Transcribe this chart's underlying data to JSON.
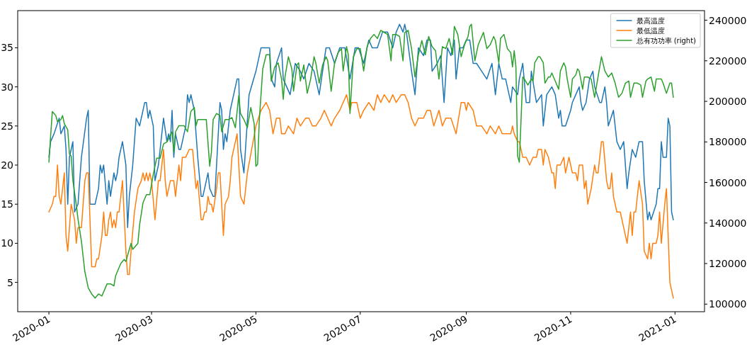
{
  "chart_data": {
    "type": "line",
    "xlim": [
      "2019-12-13T18:00",
      "2021-01-18T06:00"
    ],
    "xticks": [
      "2020-01",
      "2020-03",
      "2020-05",
      "2020-07",
      "2020-09",
      "2020-11",
      "2021-01"
    ],
    "ylim": [
      1.25,
      39.75
    ],
    "yticks": [
      5,
      10,
      15,
      20,
      25,
      30,
      35
    ],
    "y2lim": [
      96250,
      244750
    ],
    "y2ticks": [
      100000,
      120000,
      140000,
      160000,
      180000,
      200000,
      220000,
      240000
    ],
    "legend": "top right",
    "series": [
      {
        "name": "最高温度",
        "color": "#1f77b4",
        "x": [
          "2020-01-01",
          "2020-01-02",
          "2020-01-04",
          "2020-01-07",
          "2020-01-08",
          "2020-01-10",
          "2020-01-11",
          "2020-01-12",
          "2020-01-13",
          "2020-01-15",
          "2020-01-16",
          "2020-01-18",
          "2020-01-20",
          "2020-01-23",
          "2020-01-24",
          "2020-01-25",
          "2020-01-28",
          "2020-01-30",
          "2020-01-31",
          "2020-02-01",
          "2020-02-02",
          "2020-02-04",
          "2020-02-05",
          "2020-02-06",
          "2020-02-08",
          "2020-02-09",
          "2020-02-10",
          "2020-02-11",
          "2020-02-13",
          "2020-02-15",
          "2020-02-16",
          "2020-02-17",
          "2020-02-19",
          "2020-02-21",
          "2020-02-23",
          "2020-02-26",
          "2020-02-27",
          "2020-02-28",
          "2020-02-29",
          "2020-03-02",
          "2020-03-03",
          "2020-03-05",
          "2020-03-08",
          "2020-03-10",
          "2020-03-11",
          "2020-03-12",
          "2020-03-13",
          "2020-03-14",
          "2020-03-15",
          "2020-03-17",
          "2020-03-18",
          "2020-03-21",
          "2020-03-22",
          "2020-03-23",
          "2020-03-24",
          "2020-03-26",
          "2020-03-28",
          "2020-03-30",
          "2020-03-31",
          "2020-04-02",
          "2020-04-03",
          "2020-04-04",
          "2020-04-06",
          "2020-04-07",
          "2020-04-10",
          "2020-04-11",
          "2020-04-12",
          "2020-04-13",
          "2020-04-14",
          "2020-04-16",
          "2020-04-17",
          "2020-04-18",
          "2020-04-20",
          "2020-04-21",
          "2020-04-22",
          "2020-04-24",
          "2020-04-27",
          "2020-05-01",
          "2020-05-04",
          "2020-05-07",
          "2020-05-09",
          "2020-05-10",
          "2020-05-12",
          "2020-05-13",
          "2020-05-16",
          "2020-05-17",
          "2020-05-21",
          "2020-05-24",
          "2020-05-27",
          "2020-05-29",
          "2020-06-01",
          "2020-06-04",
          "2020-06-07",
          "2020-06-11",
          "2020-06-13",
          "2020-06-16",
          "2020-06-19",
          "2020-06-22",
          "2020-06-25",
          "2020-06-28",
          "2020-06-30",
          "2020-07-03",
          "2020-07-06",
          "2020-07-08",
          "2020-07-11",
          "2020-07-14",
          "2020-07-17",
          "2020-07-20",
          "2020-07-22",
          "2020-07-24",
          "2020-07-26",
          "2020-07-27",
          "2020-07-28",
          "2020-07-31",
          "2020-08-02",
          "2020-08-04",
          "2020-08-07",
          "2020-08-09",
          "2020-08-11",
          "2020-08-12",
          "2020-08-15",
          "2020-08-17",
          "2020-08-19",
          "2020-08-21",
          "2020-08-23",
          "2020-08-25",
          "2020-08-26",
          "2020-08-28",
          "2020-08-30",
          "2020-09-01",
          "2020-09-03",
          "2020-09-05",
          "2020-09-07",
          "2020-09-10",
          "2020-09-13",
          "2020-09-16",
          "2020-09-18",
          "2020-09-20",
          "2020-09-22",
          "2020-09-24",
          "2020-09-27",
          "2020-09-28",
          "2020-10-01",
          "2020-10-02",
          "2020-10-04",
          "2020-10-06",
          "2020-10-08",
          "2020-10-09",
          "2020-10-12",
          "2020-10-15",
          "2020-10-16",
          "2020-10-18",
          "2020-10-21",
          "2020-10-23",
          "2020-10-25",
          "2020-10-26",
          "2020-10-27",
          "2020-10-29",
          "2020-11-01",
          "2020-11-02",
          "2020-11-04",
          "2020-11-06",
          "2020-11-07",
          "2020-11-08",
          "2020-11-10",
          "2020-11-12",
          "2020-11-14",
          "2020-11-15",
          "2020-11-18",
          "2020-11-19",
          "2020-11-21",
          "2020-11-22",
          "2020-11-23",
          "2020-11-26",
          "2020-11-28",
          "2020-11-30",
          "2020-12-02",
          "2020-12-04",
          "2020-12-05",
          "2020-12-07",
          "2020-12-09",
          "2020-12-11",
          "2020-12-13",
          "2020-12-14",
          "2020-12-16",
          "2020-12-17",
          "2020-12-18",
          "2020-12-21",
          "2020-12-22",
          "2020-12-23",
          "2020-12-24",
          "2020-12-25",
          "2020-12-27",
          "2020-12-28",
          "2020-12-29",
          "2020-12-30",
          "2020-12-31"
        ],
        "values": [
          21,
          23,
          24,
          26,
          24,
          25,
          22,
          15,
          21,
          23,
          14,
          15,
          21,
          26,
          27,
          15,
          15,
          17,
          20,
          19,
          20,
          15,
          18,
          16,
          19,
          18,
          19,
          21,
          23,
          20,
          12,
          16,
          20,
          26,
          25,
          28,
          28,
          26,
          27,
          25,
          18,
          20,
          26,
          23,
          24,
          23,
          27,
          21,
          24,
          22,
          22,
          25,
          29,
          28,
          29,
          27,
          21,
          16,
          16,
          18,
          19,
          17,
          16,
          16,
          28,
          27,
          22,
          24,
          23,
          27,
          28,
          29,
          31,
          31,
          22,
          19,
          29,
          32,
          35,
          35,
          35,
          31,
          30,
          33,
          35,
          31,
          29,
          33,
          32,
          31,
          33,
          32,
          29,
          35,
          35,
          33,
          35,
          35,
          31,
          35,
          35,
          33,
          36,
          35,
          35,
          37,
          37,
          35,
          37,
          38,
          37,
          38,
          37,
          32,
          29,
          35,
          34,
          36,
          36,
          32,
          33,
          34,
          28,
          35,
          34,
          36,
          31,
          35,
          35,
          36,
          36,
          33,
          33,
          32,
          31,
          33,
          29,
          33,
          31,
          31,
          28,
          30,
          29,
          31,
          33,
          28,
          28,
          32,
          28,
          29,
          25,
          29,
          30,
          29,
          26,
          27,
          25,
          25,
          27,
          28,
          29,
          30,
          28,
          27,
          28,
          31,
          32,
          30,
          28,
          28,
          30,
          28,
          25,
          27,
          23,
          22,
          23,
          17,
          19,
          22,
          21,
          23,
          23,
          18,
          13,
          14,
          13,
          15,
          17,
          17,
          23,
          21,
          21,
          26,
          25,
          14,
          13
        ]
      },
      {
        "name": "最低温度",
        "color": "#ff7f0e",
        "x": [
          "2020-01-01",
          "2020-01-03",
          "2020-01-04",
          "2020-01-05",
          "2020-01-06",
          "2020-01-07",
          "2020-01-08",
          "2020-01-10",
          "2020-01-11",
          "2020-01-12",
          "2020-01-14",
          "2020-01-16",
          "2020-01-17",
          "2020-01-18",
          "2020-01-20",
          "2020-01-22",
          "2020-01-23",
          "2020-01-24",
          "2020-01-26",
          "2020-01-28",
          "2020-01-29",
          "2020-01-30",
          "2020-02-01",
          "2020-02-02",
          "2020-02-03",
          "2020-02-04",
          "2020-02-05",
          "2020-02-06",
          "2020-02-07",
          "2020-02-08",
          "2020-02-09",
          "2020-02-10",
          "2020-02-11",
          "2020-02-13",
          "2020-02-15",
          "2020-02-16",
          "2020-02-17",
          "2020-02-18",
          "2020-02-20",
          "2020-02-22",
          "2020-02-24",
          "2020-02-25",
          "2020-02-26",
          "2020-02-27",
          "2020-02-28",
          "2020-02-29",
          "2020-03-01",
          "2020-03-03",
          "2020-03-05",
          "2020-03-06",
          "2020-03-08",
          "2020-03-09",
          "2020-03-10",
          "2020-03-12",
          "2020-03-14",
          "2020-03-15",
          "2020-03-17",
          "2020-03-18",
          "2020-03-19",
          "2020-03-21",
          "2020-03-23",
          "2020-03-25",
          "2020-03-27",
          "2020-03-28",
          "2020-03-30",
          "2020-03-31",
          "2020-04-01",
          "2020-04-02",
          "2020-04-03",
          "2020-04-04",
          "2020-04-05",
          "2020-04-06",
          "2020-04-08",
          "2020-04-09",
          "2020-04-10",
          "2020-04-12",
          "2020-04-13",
          "2020-04-15",
          "2020-04-16",
          "2020-04-17",
          "2020-04-20",
          "2020-04-21",
          "2020-04-22",
          "2020-04-24",
          "2020-04-26",
          "2020-05-01",
          "2020-05-04",
          "2020-05-07",
          "2020-05-09",
          "2020-05-11",
          "2020-05-13",
          "2020-05-15",
          "2020-05-16",
          "2020-05-18",
          "2020-05-20",
          "2020-05-23",
          "2020-05-25",
          "2020-05-27",
          "2020-05-30",
          "2020-06-01",
          "2020-06-03",
          "2020-06-05",
          "2020-06-08",
          "2020-06-10",
          "2020-06-12",
          "2020-06-14",
          "2020-06-16",
          "2020-06-19",
          "2020-06-21",
          "2020-06-23",
          "2020-06-25",
          "2020-06-26",
          "2020-06-29",
          "2020-07-01",
          "2020-07-03",
          "2020-07-06",
          "2020-07-09",
          "2020-07-11",
          "2020-07-13",
          "2020-07-15",
          "2020-07-18",
          "2020-07-20",
          "2020-07-22",
          "2020-07-25",
          "2020-07-27",
          "2020-07-29",
          "2020-07-31",
          "2020-08-02",
          "2020-08-04",
          "2020-08-07",
          "2020-08-09",
          "2020-08-11",
          "2020-08-13",
          "2020-08-16",
          "2020-08-18",
          "2020-08-20",
          "2020-08-23",
          "2020-08-26",
          "2020-08-29",
          "2020-08-31",
          "2020-09-01",
          "2020-09-02",
          "2020-09-05",
          "2020-09-07",
          "2020-09-10",
          "2020-09-13",
          "2020-09-15",
          "2020-09-18",
          "2020-09-20",
          "2020-09-22",
          "2020-09-27",
          "2020-09-28",
          "2020-09-29",
          "2020-10-01",
          "2020-10-02",
          "2020-10-04",
          "2020-10-06",
          "2020-10-08",
          "2020-10-10",
          "2020-10-12",
          "2020-10-13",
          "2020-10-15",
          "2020-10-16",
          "2020-10-17",
          "2020-10-19",
          "2020-10-21",
          "2020-10-22",
          "2020-10-23",
          "2020-10-24",
          "2020-10-26",
          "2020-10-28",
          "2020-10-29",
          "2020-10-31",
          "2020-11-02",
          "2020-11-04",
          "2020-11-05",
          "2020-11-06",
          "2020-11-08",
          "2020-11-09",
          "2020-11-10",
          "2020-11-11",
          "2020-11-13",
          "2020-11-15",
          "2020-11-16",
          "2020-11-17",
          "2020-11-19",
          "2020-11-20",
          "2020-11-22",
          "2020-11-23",
          "2020-11-24",
          "2020-11-25",
          "2020-11-26",
          "2020-11-28",
          "2020-11-30",
          "2020-12-02",
          "2020-12-04",
          "2020-12-06",
          "2020-12-07",
          "2020-12-08",
          "2020-12-09",
          "2020-12-11",
          "2020-12-13",
          "2020-12-14",
          "2020-12-16",
          "2020-12-17",
          "2020-12-18",
          "2020-12-19",
          "2020-12-21",
          "2020-12-22",
          "2020-12-23",
          "2020-12-24",
          "2020-12-26",
          "2020-12-27",
          "2020-12-29",
          "2020-12-31"
        ],
        "values": [
          14,
          15,
          16,
          16,
          20,
          16,
          15,
          19,
          11,
          9,
          15,
          13,
          10,
          12,
          12,
          18,
          19,
          19,
          7,
          7,
          8,
          8,
          11,
          14,
          11,
          11,
          13,
          14,
          12,
          13,
          12,
          14,
          14,
          18,
          9,
          6,
          6,
          9,
          14,
          17,
          18,
          19,
          18,
          19,
          18,
          19,
          18,
          13,
          18,
          18,
          22,
          18,
          16,
          18,
          18,
          16,
          20,
          18,
          21,
          21,
          22,
          22,
          17,
          18,
          13,
          13,
          14,
          14,
          16,
          15,
          15,
          14,
          17,
          19,
          19,
          11,
          15,
          16,
          18,
          21,
          24,
          20,
          16,
          15,
          19,
          25,
          27,
          28,
          27,
          24,
          26,
          26,
          24,
          24,
          25,
          24,
          26,
          25,
          26,
          26,
          25,
          25,
          26,
          27,
          26,
          25,
          26,
          27,
          28,
          29,
          27,
          28,
          28,
          26,
          27,
          28,
          27,
          29,
          28,
          29,
          28,
          29,
          28,
          29,
          29,
          28,
          26,
          25,
          26,
          26,
          27,
          27,
          25,
          27,
          25,
          26,
          26,
          24,
          28,
          28,
          27,
          28,
          27,
          25,
          25,
          24,
          25,
          24,
          25,
          24,
          24,
          25,
          24,
          23,
          23,
          21,
          21,
          20,
          21,
          21,
          22,
          22,
          20,
          22,
          21,
          19,
          19,
          17,
          20,
          20,
          21,
          19,
          21,
          19,
          19,
          18,
          20,
          20,
          17,
          18,
          15,
          17,
          20,
          19,
          19,
          23,
          23,
          18,
          17,
          17,
          19,
          16,
          14,
          14,
          12,
          10,
          14,
          11,
          14,
          14,
          18,
          15,
          9,
          8,
          10,
          8,
          10,
          10,
          11,
          14,
          10,
          15,
          17,
          5,
          3
        ]
      },
      {
        "name": "总有功功率 (right)",
        "color": "#2ca02c",
        "axis": "y2",
        "x": [
          "2020-01-01",
          "2020-01-02",
          "2020-01-03",
          "2020-01-04",
          "2020-01-05",
          "2020-01-06",
          "2020-01-08",
          "2020-01-09",
          "2020-01-10",
          "2020-01-12",
          "2020-01-13",
          "2020-01-14",
          "2020-01-15",
          "2020-01-17",
          "2020-01-18",
          "2020-01-20",
          "2020-01-22",
          "2020-01-24",
          "2020-01-26",
          "2020-01-28",
          "2020-01-30",
          "2020-02-01",
          "2020-02-04",
          "2020-02-06",
          "2020-02-08",
          "2020-02-09",
          "2020-02-12",
          "2020-02-14",
          "2020-02-15",
          "2020-02-17",
          "2020-02-18",
          "2020-02-19",
          "2020-02-22",
          "2020-02-23",
          "2020-02-25",
          "2020-02-27",
          "2020-02-29",
          "2020-03-02",
          "2020-03-04",
          "2020-03-06",
          "2020-03-08",
          "2020-03-10",
          "2020-03-13",
          "2020-03-14",
          "2020-03-15",
          "2020-03-17",
          "2020-03-20",
          "2020-03-22",
          "2020-03-24",
          "2020-03-26",
          "2020-03-27",
          "2020-03-28",
          "2020-03-30",
          "2020-03-31",
          "2020-04-02",
          "2020-04-04",
          "2020-04-05",
          "2020-04-06",
          "2020-04-08",
          "2020-04-10",
          "2020-04-11",
          "2020-04-13",
          "2020-04-15",
          "2020-04-17",
          "2020-04-19",
          "2020-04-21",
          "2020-04-22",
          "2020-04-24",
          "2020-04-26",
          "2020-04-28",
          "2020-04-30",
          "2020-05-01",
          "2020-05-02",
          "2020-05-03",
          "2020-05-05",
          "2020-05-07",
          "2020-05-09",
          "2020-05-10",
          "2020-05-12",
          "2020-05-13",
          "2020-05-14",
          "2020-05-16",
          "2020-05-17",
          "2020-05-18",
          "2020-05-20",
          "2020-05-22",
          "2020-05-23",
          "2020-05-25",
          "2020-05-26",
          "2020-05-27",
          "2020-05-29",
          "2020-05-31",
          "2020-06-02",
          "2020-06-04",
          "2020-06-05",
          "2020-06-07",
          "2020-06-09",
          "2020-06-11",
          "2020-06-12",
          "2020-06-14",
          "2020-06-16",
          "2020-06-18",
          "2020-06-20",
          "2020-06-21",
          "2020-06-23",
          "2020-06-24",
          "2020-06-25",
          "2020-06-27",
          "2020-06-29",
          "2020-07-01",
          "2020-07-03",
          "2020-07-05",
          "2020-07-07",
          "2020-07-09",
          "2020-07-11",
          "2020-07-13",
          "2020-07-15",
          "2020-07-17",
          "2020-07-19",
          "2020-07-20",
          "2020-07-22",
          "2020-07-24",
          "2020-07-26",
          "2020-07-27",
          "2020-07-29",
          "2020-07-31",
          "2020-08-02",
          "2020-08-04",
          "2020-08-06",
          "2020-08-08",
          "2020-08-10",
          "2020-08-12",
          "2020-08-14",
          "2020-08-16",
          "2020-08-18",
          "2020-08-20",
          "2020-08-22",
          "2020-08-24",
          "2020-08-25",
          "2020-08-27",
          "2020-08-29",
          "2020-08-31",
          "2020-09-02",
          "2020-09-03",
          "2020-09-04",
          "2020-09-06",
          "2020-09-08",
          "2020-09-11",
          "2020-09-13",
          "2020-09-15",
          "2020-09-17",
          "2020-09-18",
          "2020-09-20",
          "2020-09-21",
          "2020-09-23",
          "2020-09-25",
          "2020-09-27",
          "2020-09-28",
          "2020-09-29",
          "2020-09-30",
          "2020-10-01",
          "2020-10-02",
          "2020-10-03",
          "2020-10-04",
          "2020-10-05",
          "2020-10-07",
          "2020-10-09",
          "2020-10-10",
          "2020-10-11",
          "2020-10-13",
          "2020-10-14",
          "2020-10-16",
          "2020-10-17",
          "2020-10-19",
          "2020-10-20",
          "2020-10-21",
          "2020-10-23",
          "2020-10-25",
          "2020-10-26",
          "2020-10-28",
          "2020-10-29",
          "2020-10-30",
          "2020-11-01",
          "2020-11-02",
          "2020-11-04",
          "2020-11-05",
          "2020-11-06",
          "2020-11-08",
          "2020-11-09",
          "2020-11-11",
          "2020-11-13",
          "2020-11-15",
          "2020-11-17",
          "2020-11-19",
          "2020-11-21",
          "2020-11-23",
          "2020-11-25",
          "2020-11-27",
          "2020-11-29",
          "2020-12-01",
          "2020-12-03",
          "2020-12-05",
          "2020-12-06",
          "2020-12-08",
          "2020-12-10",
          "2020-12-12",
          "2020-12-13",
          "2020-12-15",
          "2020-12-16",
          "2020-12-18",
          "2020-12-20",
          "2020-12-21",
          "2020-12-24",
          "2020-12-25",
          "2020-12-27",
          "2020-12-29",
          "2020-12-30",
          "2020-12-31"
        ],
        "values": [
          170000,
          183000,
          195000,
          194000,
          193000,
          190000,
          191000,
          193000,
          189000,
          186000,
          174000,
          173000,
          161000,
          149000,
          142000,
          131000,
          116000,
          108000,
          105000,
          103000,
          105000,
          104000,
          110000,
          110000,
          109000,
          114000,
          120000,
          122000,
          121000,
          127000,
          130000,
          127000,
          130000,
          139000,
          150000,
          154000,
          154000,
          164000,
          172000,
          172000,
          179000,
          180000,
          185000,
          175000,
          185000,
          188000,
          188000,
          185000,
          195000,
          197000,
          188000,
          191000,
          191000,
          191000,
          191000,
          168000,
          175000,
          191000,
          194000,
          193000,
          185000,
          191000,
          191000,
          192000,
          187000,
          203000,
          194000,
          191000,
          187000,
          197000,
          189000,
          168000,
          169000,
          191000,
          216000,
          223000,
          223000,
          210000,
          217000,
          218000,
          219000,
          211000,
          201000,
          212000,
          222000,
          216000,
          205000,
          218000,
          219000,
          210000,
          218000,
          204000,
          211000,
          222000,
          219000,
          209000,
          218000,
          222000,
          220000,
          205000,
          219000,
          224000,
          226000,
          215000,
          227000,
          223000,
          194000,
          222000,
          226000,
          226000,
          215000,
          227000,
          231000,
          233000,
          231000,
          235000,
          234000,
          233000,
          220000,
          233000,
          233000,
          232000,
          220000,
          234000,
          235000,
          226000,
          212000,
          223000,
          230000,
          223000,
          232000,
          227000,
          225000,
          211000,
          227000,
          226000,
          231000,
          223000,
          237000,
          233000,
          222000,
          228000,
          232000,
          237000,
          238000,
          220000,
          228000,
          234000,
          226000,
          228000,
          232000,
          230000,
          219000,
          231000,
          233000,
          226000,
          224000,
          217000,
          225000,
          217000,
          173000,
          170000,
          191000,
          212000,
          211000,
          208000,
          211000,
          210000,
          219000,
          222000,
          222000,
          219000,
          209000,
          212000,
          212000,
          214000,
          210000,
          206000,
          215000,
          219000,
          217000,
          211000,
          202000,
          211000,
          213000,
          216000,
          215000,
          206000,
          212000,
          212000,
          211000,
          202000,
          212000,
          222000,
          215000,
          212000,
          214000,
          209000,
          202000,
          204000,
          209000,
          210000,
          202000,
          209000,
          209000,
          208000,
          202000,
          210000,
          211000,
          212000,
          205000,
          211000,
          211000,
          209000,
          204000,
          209000,
          209000,
          202000
        ]
      }
    ]
  }
}
